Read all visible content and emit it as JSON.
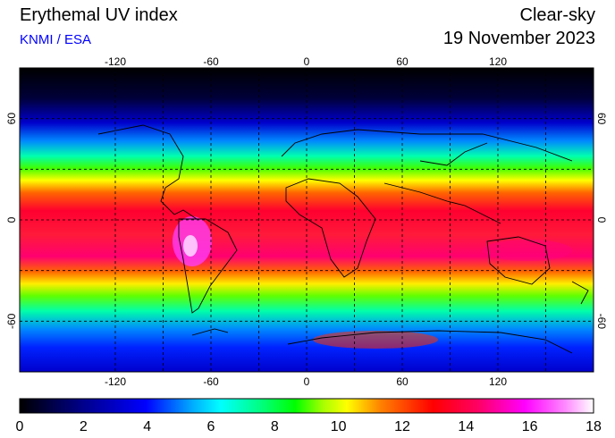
{
  "header": {
    "title": "Erythemal UV index",
    "source": "KNMI / ESA",
    "condition": "Clear-sky",
    "date": "19 November 2023"
  },
  "map": {
    "longitude_ticks": [
      "-120",
      "-60",
      "0",
      "60",
      "120"
    ],
    "latitude_ticks": [
      "60",
      "0",
      "-60"
    ],
    "grid_longitudes": [
      -120,
      -90,
      -60,
      -30,
      0,
      30,
      60,
      90,
      120,
      150
    ],
    "grid_latitudes": [
      60,
      30,
      0,
      -30,
      -60
    ],
    "lon_range": [
      -180,
      180
    ],
    "lat_range": [
      -90,
      90
    ]
  },
  "colorbar": {
    "labels": [
      "0",
      "2",
      "4",
      "6",
      "8",
      "10",
      "12",
      "14",
      "16",
      "18"
    ],
    "range": [
      0,
      18
    ],
    "colors": [
      "#000000",
      "#00008b",
      "#0000ff",
      "#00aaff",
      "#00ffff",
      "#00ff80",
      "#00ff00",
      "#aaff00",
      "#ffff00",
      "#ff8000",
      "#ff0000",
      "#ff0066",
      "#ff00ff",
      "#ff88ff",
      "#ffffff"
    ]
  }
}
